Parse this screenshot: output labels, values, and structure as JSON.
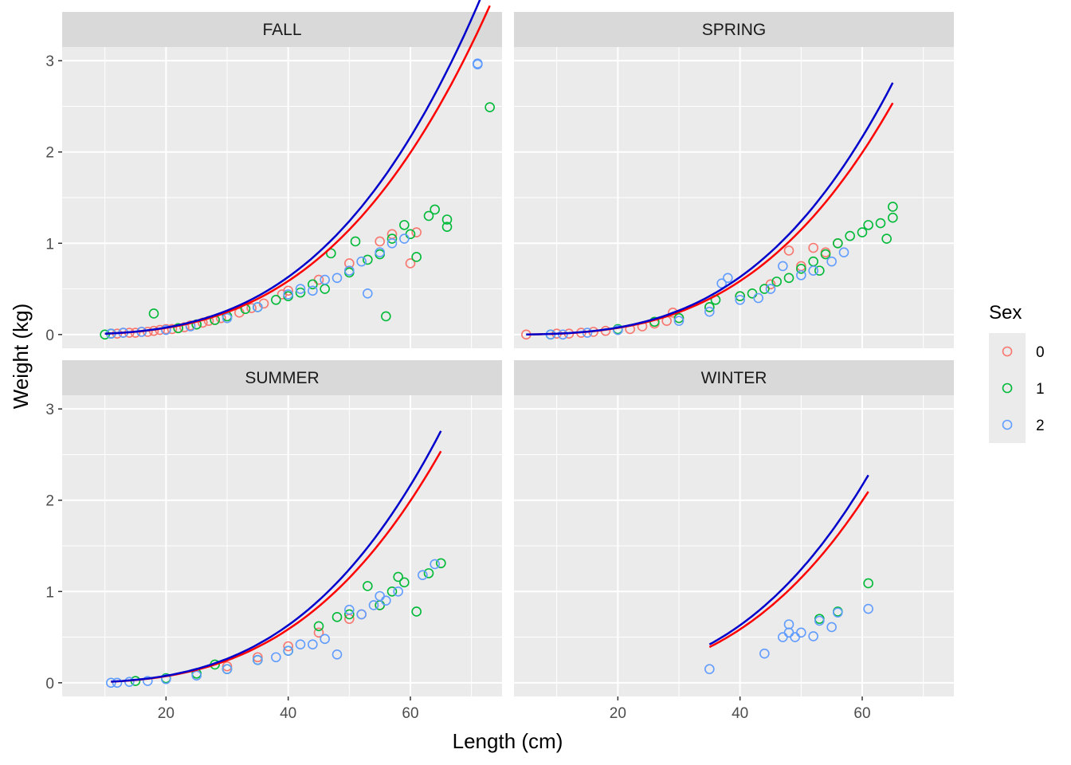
{
  "chart_data": {
    "type": "scatter",
    "xlabel": "Length (cm)",
    "ylabel": "Weight (kg)",
    "xlim": [
      3,
      75
    ],
    "ylim": [
      -0.15,
      3.15
    ],
    "xticks": [
      20,
      40,
      60
    ],
    "yticks": [
      0,
      1,
      2,
      3
    ],
    "grid": true,
    "legend": {
      "title": "Sex",
      "position": "right",
      "entries": [
        {
          "label": "0",
          "color": "#F8766D"
        },
        {
          "label": "1",
          "color": "#00BA38"
        },
        {
          "label": "2",
          "color": "#619CFF"
        }
      ]
    },
    "fit_lines": [
      {
        "color": "#FF0000",
        "a": 8.5e-06,
        "b": 3.02
      },
      {
        "color": "#0000CC",
        "a": 8.5e-06,
        "b": 3.04
      }
    ],
    "panels": [
      {
        "strip": "FALL",
        "fit_x_range": [
          10,
          73
        ],
        "series": [
          {
            "name": "0",
            "color": "#F8766D",
            "points": [
              [
                11,
                0.01
              ],
              [
                12,
                0.01
              ],
              [
                13,
                0.02
              ],
              [
                14,
                0.02
              ],
              [
                15,
                0.02
              ],
              [
                16,
                0.03
              ],
              [
                17,
                0.03
              ],
              [
                18,
                0.04
              ],
              [
                19,
                0.05
              ],
              [
                20,
                0.06
              ],
              [
                21,
                0.06
              ],
              [
                22,
                0.07
              ],
              [
                23,
                0.08
              ],
              [
                24,
                0.1
              ],
              [
                25,
                0.11
              ],
              [
                26,
                0.13
              ],
              [
                27,
                0.15
              ],
              [
                28,
                0.16
              ],
              [
                29,
                0.18
              ],
              [
                30,
                0.2
              ],
              [
                32,
                0.24
              ],
              [
                34,
                0.29
              ],
              [
                36,
                0.34
              ],
              [
                39,
                0.44
              ],
              [
                40,
                0.48
              ],
              [
                45,
                0.6
              ],
              [
                50,
                0.78
              ],
              [
                55,
                1.02
              ],
              [
                57,
                1.1
              ],
              [
                60,
                0.78
              ],
              [
                61,
                1.12
              ]
            ]
          },
          {
            "name": "1",
            "color": "#00BA38",
            "points": [
              [
                10,
                0.0
              ],
              [
                11,
                0.01
              ],
              [
                18,
                0.23
              ],
              [
                22,
                0.07
              ],
              [
                25,
                0.11
              ],
              [
                28,
                0.16
              ],
              [
                30,
                0.2
              ],
              [
                33,
                0.28
              ],
              [
                35,
                0.3
              ],
              [
                38,
                0.38
              ],
              [
                40,
                0.42
              ],
              [
                42,
                0.46
              ],
              [
                44,
                0.55
              ],
              [
                46,
                0.5
              ],
              [
                47,
                0.89
              ],
              [
                50,
                0.68
              ],
              [
                51,
                1.02
              ],
              [
                53,
                0.82
              ],
              [
                55,
                0.88
              ],
              [
                56,
                0.2
              ],
              [
                57,
                1.05
              ],
              [
                59,
                1.2
              ],
              [
                60,
                1.1
              ],
              [
                61,
                0.85
              ],
              [
                63,
                1.3
              ],
              [
                64,
                1.37
              ],
              [
                66,
                1.26
              ],
              [
                66,
                1.18
              ],
              [
                73,
                2.49
              ]
            ]
          },
          {
            "name": "2",
            "color": "#619CFF",
            "points": [
              [
                11,
                0.01
              ],
              [
                13,
                0.02
              ],
              [
                16,
                0.03
              ],
              [
                20,
                0.05
              ],
              [
                24,
                0.09
              ],
              [
                30,
                0.18
              ],
              [
                35,
                0.3
              ],
              [
                40,
                0.44
              ],
              [
                42,
                0.5
              ],
              [
                44,
                0.48
              ],
              [
                46,
                0.6
              ],
              [
                48,
                0.62
              ],
              [
                50,
                0.7
              ],
              [
                52,
                0.8
              ],
              [
                53,
                0.45
              ],
              [
                55,
                0.9
              ],
              [
                57,
                1.0
              ],
              [
                59,
                1.05
              ],
              [
                71,
                2.96
              ],
              [
                71,
                2.97
              ]
            ]
          }
        ]
      },
      {
        "strip": "SPRING",
        "fit_x_range": [
          5,
          65
        ],
        "series": [
          {
            "name": "0",
            "color": "#F8766D",
            "points": [
              [
                5,
                0.0
              ],
              [
                10,
                0.01
              ],
              [
                12,
                0.01
              ],
              [
                14,
                0.02
              ],
              [
                16,
                0.03
              ],
              [
                18,
                0.04
              ],
              [
                20,
                0.05
              ],
              [
                22,
                0.06
              ],
              [
                24,
                0.09
              ],
              [
                26,
                0.12
              ],
              [
                28,
                0.15
              ],
              [
                29,
                0.24
              ],
              [
                30,
                0.18
              ],
              [
                35,
                0.3
              ],
              [
                40,
                0.42
              ],
              [
                45,
                0.55
              ],
              [
                48,
                0.92
              ],
              [
                50,
                0.75
              ],
              [
                52,
                0.95
              ],
              [
                54,
                0.9
              ],
              [
                56,
                1.0
              ]
            ]
          },
          {
            "name": "1",
            "color": "#00BA38",
            "points": [
              [
                9,
                0.0
              ],
              [
                20,
                0.06
              ],
              [
                26,
                0.14
              ],
              [
                30,
                0.18
              ],
              [
                35,
                0.3
              ],
              [
                36,
                0.38
              ],
              [
                40,
                0.42
              ],
              [
                42,
                0.45
              ],
              [
                44,
                0.5
              ],
              [
                46,
                0.58
              ],
              [
                48,
                0.62
              ],
              [
                50,
                0.72
              ],
              [
                52,
                0.8
              ],
              [
                53,
                0.7
              ],
              [
                54,
                0.88
              ],
              [
                56,
                1.0
              ],
              [
                58,
                1.08
              ],
              [
                60,
                1.12
              ],
              [
                61,
                1.2
              ],
              [
                63,
                1.22
              ],
              [
                64,
                1.05
              ],
              [
                65,
                1.4
              ],
              [
                65,
                1.28
              ]
            ]
          },
          {
            "name": "2",
            "color": "#619CFF",
            "points": [
              [
                9,
                0.0
              ],
              [
                11,
                0.0
              ],
              [
                15,
                0.02
              ],
              [
                20,
                0.05
              ],
              [
                30,
                0.15
              ],
              [
                35,
                0.25
              ],
              [
                37,
                0.56
              ],
              [
                38,
                0.62
              ],
              [
                40,
                0.38
              ],
              [
                43,
                0.4
              ],
              [
                45,
                0.5
              ],
              [
                47,
                0.75
              ],
              [
                50,
                0.65
              ],
              [
                52,
                0.7
              ],
              [
                55,
                0.8
              ],
              [
                57,
                0.9
              ]
            ]
          }
        ]
      },
      {
        "strip": "SUMMER",
        "fit_x_range": [
          11,
          65
        ],
        "series": [
          {
            "name": "0",
            "color": "#F8766D",
            "points": [
              [
                30,
                0.18
              ],
              [
                35,
                0.28
              ],
              [
                40,
                0.4
              ],
              [
                45,
                0.55
              ],
              [
                50,
                0.7
              ],
              [
                52,
                0.75
              ],
              [
                55,
                0.85
              ]
            ]
          },
          {
            "name": "1",
            "color": "#00BA38",
            "points": [
              [
                15,
                0.02
              ],
              [
                20,
                0.05
              ],
              [
                25,
                0.1
              ],
              [
                28,
                0.2
              ],
              [
                30,
                0.15
              ],
              [
                35,
                0.25
              ],
              [
                40,
                0.35
              ],
              [
                45,
                0.62
              ],
              [
                48,
                0.72
              ],
              [
                50,
                0.75
              ],
              [
                53,
                1.06
              ],
              [
                55,
                0.85
              ],
              [
                57,
                1.0
              ],
              [
                58,
                1.16
              ],
              [
                59,
                1.1
              ],
              [
                61,
                0.78
              ],
              [
                63,
                1.2
              ],
              [
                65,
                1.31
              ]
            ]
          },
          {
            "name": "2",
            "color": "#619CFF",
            "points": [
              [
                11,
                0.0
              ],
              [
                12,
                0.0
              ],
              [
                14,
                0.01
              ],
              [
                17,
                0.02
              ],
              [
                20,
                0.04
              ],
              [
                25,
                0.08
              ],
              [
                30,
                0.15
              ],
              [
                35,
                0.25
              ],
              [
                38,
                0.28
              ],
              [
                40,
                0.35
              ],
              [
                42,
                0.42
              ],
              [
                44,
                0.42
              ],
              [
                46,
                0.48
              ],
              [
                48,
                0.31
              ],
              [
                50,
                0.8
              ],
              [
                52,
                0.75
              ],
              [
                54,
                0.85
              ],
              [
                55,
                0.95
              ],
              [
                56,
                0.9
              ],
              [
                58,
                1.0
              ],
              [
                62,
                1.18
              ],
              [
                64,
                1.3
              ]
            ]
          }
        ]
      },
      {
        "strip": "WINTER",
        "fit_x_range": [
          35,
          61
        ],
        "series": [
          {
            "name": "1",
            "color": "#00BA38",
            "points": [
              [
                53,
                0.7
              ],
              [
                56,
                0.78
              ],
              [
                61,
                1.09
              ]
            ]
          },
          {
            "name": "2",
            "color": "#619CFF",
            "points": [
              [
                35,
                0.15
              ],
              [
                44,
                0.32
              ],
              [
                47,
                0.5
              ],
              [
                48,
                0.64
              ],
              [
                48,
                0.55
              ],
              [
                49,
                0.5
              ],
              [
                50,
                0.55
              ],
              [
                52,
                0.51
              ],
              [
                53,
                0.68
              ],
              [
                55,
                0.61
              ],
              [
                56,
                0.77
              ],
              [
                61,
                0.81
              ]
            ]
          }
        ]
      }
    ]
  }
}
